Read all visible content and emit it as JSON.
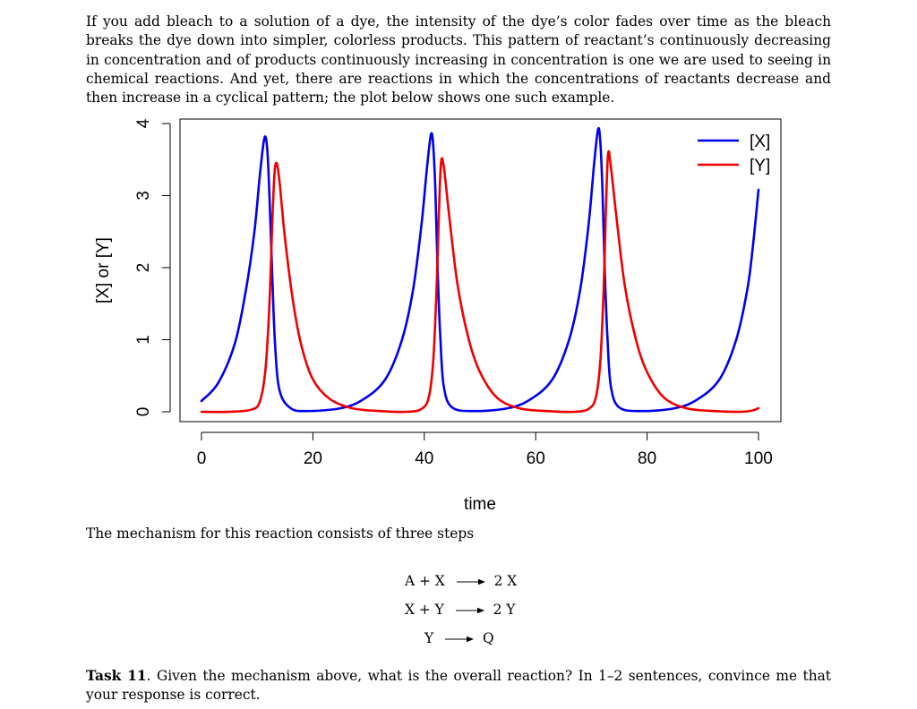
{
  "intro_text": "If you add bleach to a solution of a dye, the intensity of the dye’s color fades over time as the bleach breaks the dye down into simpler, colorless products. This pattern of reactant’s continuously decreasing in concentration and of products continuously increasing in concentration is one we are used to seeing in chemical reactions. And yet, there are reactions in which the concentrations of reactants decrease and then increase in a cyclical pattern; the plot below shows one such example.",
  "chart_data": {
    "type": "line",
    "title": "",
    "xlabel": "time",
    "ylabel": "[X] or [Y]",
    "xlim": [
      0,
      100
    ],
    "ylim": [
      0,
      4
    ],
    "xticks": [
      "0",
      "20",
      "40",
      "60",
      "80",
      "100"
    ],
    "yticks": [
      "0",
      "1",
      "2",
      "3",
      "4"
    ],
    "legend_position": "top-right",
    "series": [
      {
        "name": "[X]",
        "color": "#0000ee",
        "x": [
          0,
          3,
          6,
          8,
          9.5,
          10.5,
          11.3,
          11.8,
          12.2,
          12.7,
          13.2,
          14,
          16,
          19,
          25,
          29,
          33,
          36,
          38,
          39.5,
          40.5,
          41.2,
          41.6,
          42,
          42.4,
          42.9,
          43.5,
          45,
          49,
          55,
          59,
          63,
          66,
          68,
          69.5,
          70.5,
          71.2,
          71.6,
          72,
          72.4,
          72.9,
          73.5,
          75,
          79,
          85,
          89,
          93,
          96,
          98,
          99,
          100
        ],
        "y": [
          0.15,
          0.4,
          0.95,
          1.7,
          2.5,
          3.3,
          3.8,
          3.65,
          3.0,
          1.9,
          0.95,
          0.3,
          0.05,
          0.01,
          0.05,
          0.17,
          0.45,
          1.0,
          1.7,
          2.6,
          3.4,
          3.85,
          3.7,
          3.05,
          1.95,
          1.0,
          0.35,
          0.06,
          0.01,
          0.05,
          0.17,
          0.45,
          1.0,
          1.7,
          2.6,
          3.45,
          3.92,
          3.75,
          3.05,
          1.95,
          1.0,
          0.35,
          0.06,
          0.01,
          0.05,
          0.17,
          0.45,
          1.0,
          1.7,
          2.3,
          3.08
        ]
      },
      {
        "name": "[Y]",
        "color": "#ee0000",
        "x": [
          0,
          5,
          9,
          10.5,
          11.5,
          12.2,
          12.7,
          13.1,
          13.5,
          14,
          15,
          16.5,
          18,
          20,
          23,
          27,
          32,
          37,
          39.5,
          40.8,
          41.6,
          42.2,
          42.6,
          43,
          43.5,
          44.5,
          46,
          48,
          50,
          53,
          57,
          62,
          67,
          69.5,
          70.8,
          71.6,
          72.2,
          72.6,
          73,
          73.5,
          74.5,
          76,
          78,
          80,
          83,
          87,
          92,
          97,
          99,
          100
        ],
        "y": [
          0.0,
          0.0,
          0.03,
          0.15,
          0.6,
          1.5,
          2.6,
          3.3,
          3.45,
          3.2,
          2.4,
          1.5,
          0.9,
          0.45,
          0.18,
          0.05,
          0.01,
          0.0,
          0.04,
          0.2,
          0.7,
          1.7,
          2.7,
          3.45,
          3.4,
          2.7,
          1.75,
          1.0,
          0.55,
          0.2,
          0.05,
          0.01,
          0.0,
          0.04,
          0.2,
          0.7,
          1.7,
          2.8,
          3.58,
          3.4,
          2.7,
          1.75,
          1.0,
          0.55,
          0.2,
          0.05,
          0.01,
          0.0,
          0.02,
          0.05
        ]
      }
    ]
  },
  "mechanism_intro": "The mechanism for this reaction consists of three steps",
  "steps": [
    {
      "lhs": "A + X",
      "rhs": "2 X"
    },
    {
      "lhs": "X + Y",
      "rhs": "2 Y"
    },
    {
      "lhs": "Y",
      "rhs": "Q"
    }
  ],
  "task": {
    "label": "Task 11",
    "text": ". Given the mechanism above, what is the overall reaction? In 1–2 sentences, convince me that your response is correct."
  }
}
